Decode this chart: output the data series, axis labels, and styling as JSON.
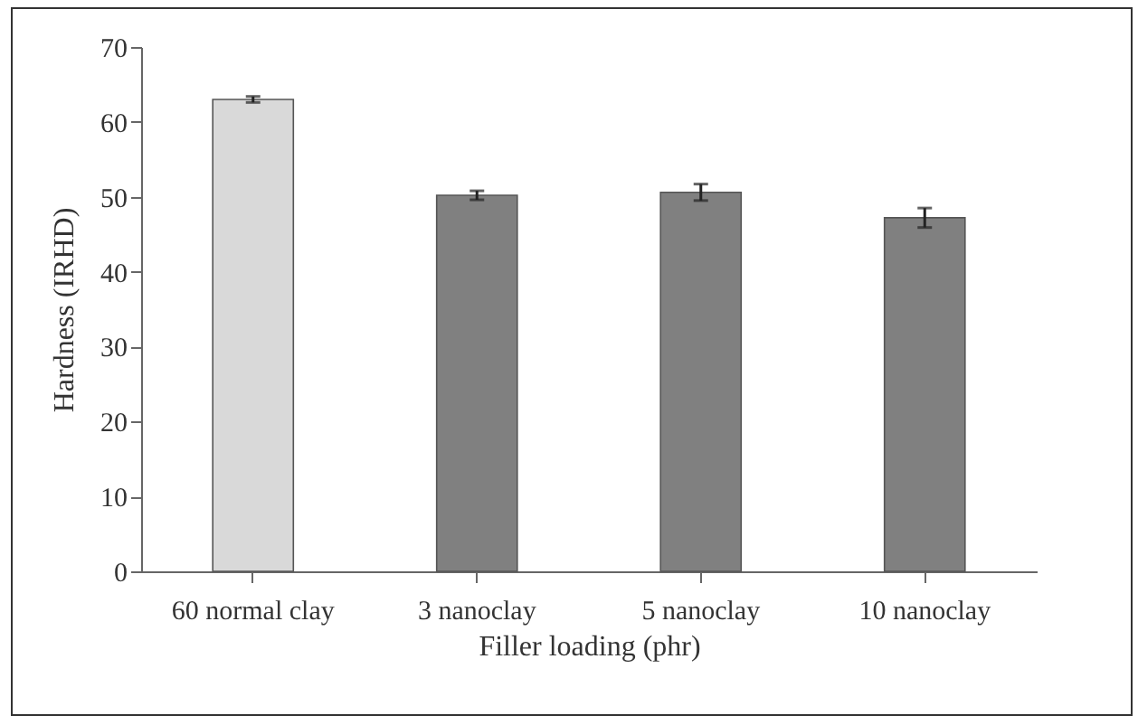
{
  "chart_data": {
    "type": "bar",
    "xlabel": "Filler loading (phr)",
    "ylabel": "Hardness (IRHD)",
    "categories": [
      "60 normal clay",
      "3 nanoclay",
      "5 nanoclay",
      "10 nanoclay"
    ],
    "values": [
      63,
      50.2,
      50.6,
      47.2
    ],
    "errors": [
      0.4,
      0.6,
      1.1,
      1.3
    ],
    "colors": [
      "#d9d9d9",
      "#808080",
      "#808080",
      "#808080"
    ],
    "ylim": [
      0,
      70
    ],
    "yticks": [
      0,
      10,
      20,
      30,
      40,
      50,
      60,
      70
    ],
    "grid": false
  }
}
